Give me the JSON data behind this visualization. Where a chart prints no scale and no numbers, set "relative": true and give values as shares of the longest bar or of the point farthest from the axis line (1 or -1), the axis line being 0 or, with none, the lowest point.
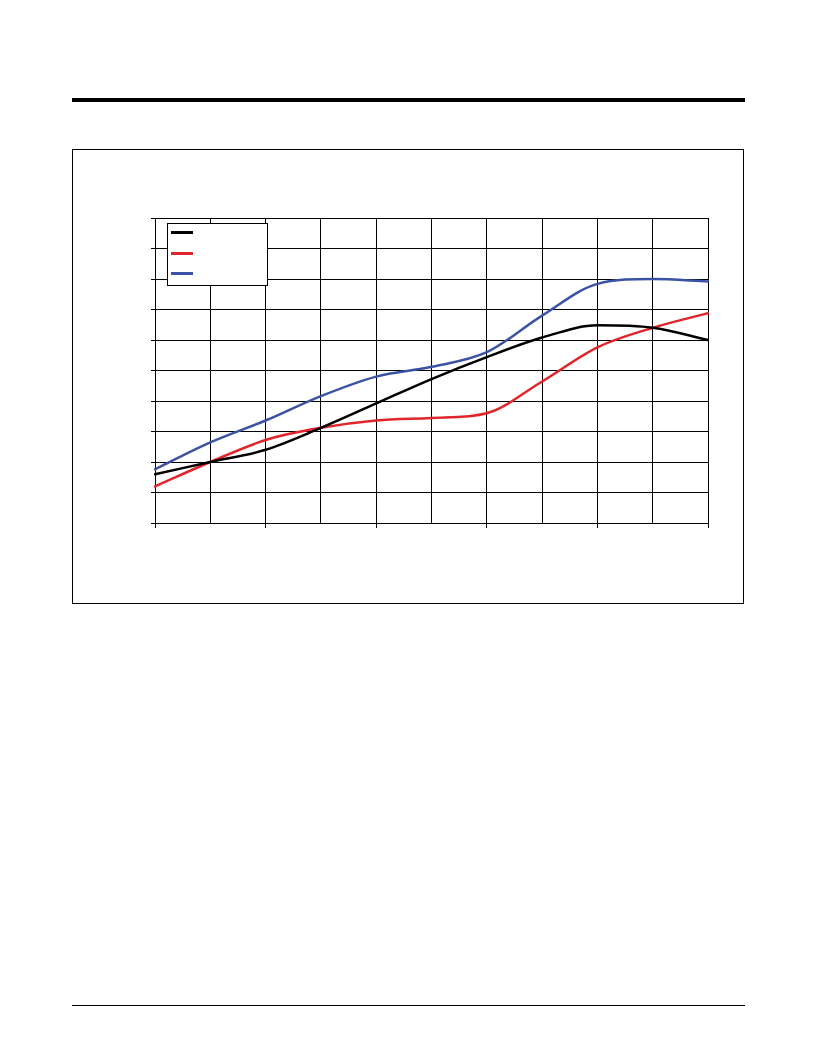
{
  "chart_data": {
    "type": "line",
    "relative": true,
    "categories": [
      null,
      null,
      null,
      null,
      null,
      null,
      null,
      null,
      null,
      null,
      null
    ],
    "series": [
      {
        "color": "#000000",
        "values": [
          0.2,
          0.25,
          0.3,
          0.39,
          0.49,
          0.59,
          0.68,
          0.76,
          0.81,
          0.8,
          0.75
        ]
      },
      {
        "color": "#e0262b",
        "values": [
          0.15,
          0.25,
          0.34,
          0.39,
          0.42,
          0.43,
          0.45,
          0.58,
          0.72,
          0.8,
          0.86
        ]
      },
      {
        "color": "#3a53a4",
        "values": [
          0.22,
          0.33,
          0.42,
          0.52,
          0.6,
          0.64,
          0.7,
          0.85,
          0.98,
          1,
          0.99
        ]
      }
    ],
    "grid": true,
    "marker": "none"
  }
}
